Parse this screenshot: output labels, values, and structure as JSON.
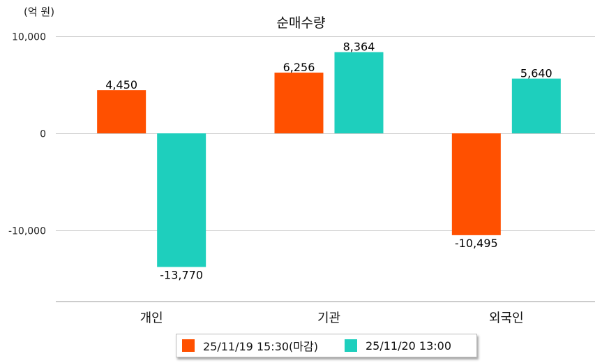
{
  "chart_data": {
    "type": "bar",
    "title": "순매수량",
    "unit_label": "(억 원)",
    "categories": [
      "개인",
      "기관",
      "외국인"
    ],
    "series": [
      {
        "name": "25/11/19 15:30(마감)",
        "color": "#ff5000",
        "values": [
          4450,
          6256,
          -10495
        ],
        "labels": [
          "4,450",
          "6,256",
          "-10,495"
        ]
      },
      {
        "name": "25/11/20 13:00",
        "color": "#1ecfbd",
        "values": [
          -13770,
          8364,
          5640
        ],
        "labels": [
          "-13,770",
          "8,364",
          "5,640"
        ]
      }
    ],
    "yticks": [
      10000,
      0,
      -10000
    ],
    "ytick_labels": [
      "10,000",
      "0",
      "-10,000"
    ],
    "ylim": [
      -17300,
      10000
    ],
    "grid": true,
    "legend_position": "bottom"
  }
}
